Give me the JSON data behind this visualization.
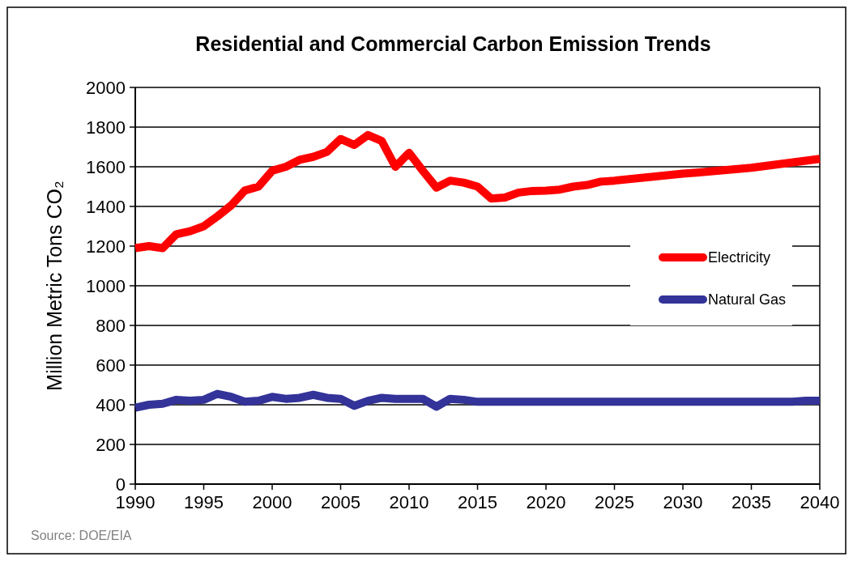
{
  "chart_data": {
    "type": "line",
    "title": "Residential and Commercial Carbon Emission Trends",
    "ylabel": "Million Metric Tons CO₂",
    "annotations": [
      "Source: DOE/EIA"
    ],
    "xlim": [
      1990,
      2040
    ],
    "xticks": [
      1990,
      1995,
      2000,
      2005,
      2010,
      2015,
      2020,
      2025,
      2030,
      2035,
      2040
    ],
    "ylim": [
      0,
      2000
    ],
    "yticks": [
      0,
      200,
      400,
      600,
      800,
      1000,
      1200,
      1400,
      1600,
      1800,
      2000
    ],
    "grid": "y",
    "legend": "right",
    "marker": "none",
    "line_style": "solid",
    "series": [
      {
        "name": "Electricity",
        "color": "#ff0000",
        "x": [
          1990,
          1991,
          1992,
          1993,
          1994,
          1995,
          1996,
          1997,
          1998,
          1999,
          2000,
          2001,
          2002,
          2003,
          2004,
          2005,
          2006,
          2007,
          2008,
          2009,
          2010,
          2011,
          2012,
          2013,
          2014,
          2015,
          2016,
          2017,
          2018,
          2019,
          2020,
          2021,
          2022,
          2023,
          2024,
          2025,
          2030,
          2031,
          2035,
          2040
        ],
        "values": [
          1190,
          1200,
          1190,
          1260,
          1275,
          1300,
          1350,
          1405,
          1480,
          1500,
          1580,
          1600,
          1635,
          1650,
          1675,
          1740,
          1710,
          1760,
          1730,
          1600,
          1670,
          1580,
          1495,
          1530,
          1520,
          1500,
          1440,
          1445,
          1470,
          1478,
          1480,
          1485,
          1500,
          1508,
          1525,
          1530,
          1565,
          1570,
          1595,
          1640
        ]
      },
      {
        "name": "Natural Gas",
        "color": "#333399",
        "x": [
          1990,
          1991,
          1992,
          1993,
          1994,
          1995,
          1996,
          1997,
          1998,
          1999,
          2000,
          2001,
          2002,
          2003,
          2004,
          2005,
          2006,
          2007,
          2008,
          2009,
          2010,
          2011,
          2012,
          2013,
          2014,
          2015,
          2020,
          2038,
          2039,
          2040
        ],
        "values": [
          385,
          400,
          405,
          425,
          420,
          425,
          455,
          440,
          415,
          420,
          440,
          430,
          435,
          450,
          435,
          430,
          395,
          420,
          435,
          430,
          430,
          430,
          390,
          430,
          425,
          415,
          415,
          415,
          420,
          420
        ]
      }
    ]
  }
}
